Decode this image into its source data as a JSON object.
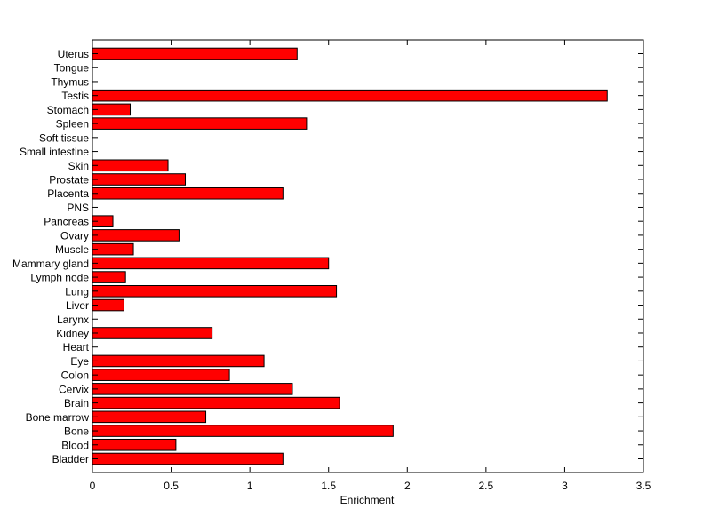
{
  "chart_data": {
    "type": "bar",
    "orientation": "horizontal",
    "title": "",
    "xlabel": "Enrichment",
    "ylabel": "",
    "xlim": [
      0,
      3.5
    ],
    "xticks": [
      0,
      0.5,
      1,
      1.5,
      2,
      2.5,
      3,
      3.5
    ],
    "xtick_labels": [
      "0",
      "0.5",
      "1",
      "1.5",
      "2",
      "2.5",
      "3",
      "3.5"
    ],
    "grid": false,
    "legend": "none",
    "bar_color": "#ff0000",
    "bar_edge_color": "#000000",
    "categories": [
      "Bladder",
      "Blood",
      "Bone",
      "Bone marrow",
      "Brain",
      "Cervix",
      "Colon",
      "Eye",
      "Heart",
      "Kidney",
      "Larynx",
      "Liver",
      "Lung",
      "Lymph node",
      "Mammary gland",
      "Muscle",
      "Ovary",
      "Pancreas",
      "PNS",
      "Placenta",
      "Prostate",
      "Skin",
      "Small intestine",
      "Soft tissue",
      "Spleen",
      "Stomach",
      "Testis",
      "Thymus",
      "Tongue",
      "Uterus"
    ],
    "values": [
      1.21,
      0.53,
      1.91,
      0.72,
      1.57,
      1.27,
      0.87,
      1.09,
      0,
      0.76,
      0,
      0.2,
      1.55,
      0.21,
      1.5,
      0.26,
      0.55,
      0.13,
      0,
      1.21,
      0.59,
      0.48,
      0,
      0,
      1.36,
      0.24,
      3.27,
      0,
      0,
      1.3
    ]
  }
}
